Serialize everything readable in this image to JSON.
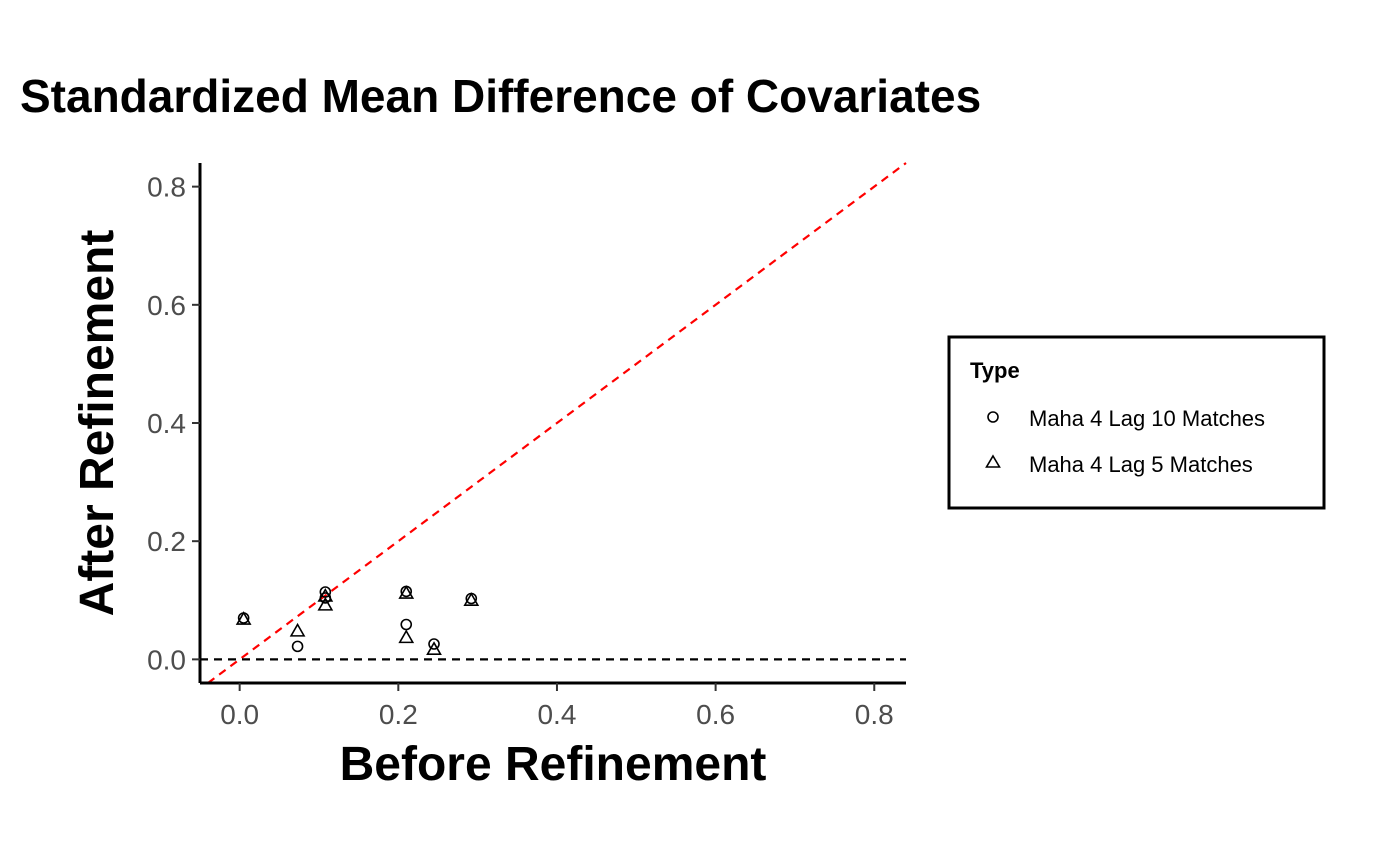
{
  "chart_data": {
    "type": "scatter",
    "title": "Standardized Mean Difference of Covariates",
    "xlabel": "Before Refinement",
    "ylabel": "After Refinement",
    "xlim": [
      -0.05,
      0.84
    ],
    "ylim": [
      -0.04,
      0.84
    ],
    "x_ticks": [
      0.0,
      0.2,
      0.4,
      0.6,
      0.8
    ],
    "y_ticks": [
      0.0,
      0.2,
      0.4,
      0.6,
      0.8
    ],
    "x_tick_labels": [
      "0.0",
      "0.2",
      "0.4",
      "0.6",
      "0.8"
    ],
    "y_tick_labels": [
      "0.0",
      "0.2",
      "0.4",
      "0.6",
      "0.8"
    ],
    "grid": false,
    "reference_lines": [
      {
        "kind": "identity",
        "style": "dashed",
        "color": "#ff0000"
      },
      {
        "kind": "horizontal",
        "y": 0.0,
        "style": "dashed",
        "color": "#000000"
      }
    ],
    "legend": {
      "title": "Type",
      "placement": "right",
      "entries": [
        "Maha 4 Lag 10 Matches",
        "Maha 4 Lag 5 Matches"
      ]
    },
    "series": [
      {
        "name": "Maha 4 Lag 10 Matches",
        "marker": "circle",
        "points": [
          [
            0.005,
            0.07
          ],
          [
            0.073,
            0.022
          ],
          [
            0.108,
            0.114
          ],
          [
            0.108,
            0.104
          ],
          [
            0.21,
            0.115
          ],
          [
            0.21,
            0.059
          ],
          [
            0.245,
            0.026
          ],
          [
            0.292,
            0.103
          ]
        ]
      },
      {
        "name": "Maha 4 Lag 5 Matches",
        "marker": "triangle",
        "points": [
          [
            0.005,
            0.068
          ],
          [
            0.073,
            0.048
          ],
          [
            0.108,
            0.107
          ],
          [
            0.108,
            0.092
          ],
          [
            0.21,
            0.112
          ],
          [
            0.21,
            0.037
          ],
          [
            0.245,
            0.017
          ],
          [
            0.292,
            0.1
          ]
        ]
      }
    ]
  }
}
